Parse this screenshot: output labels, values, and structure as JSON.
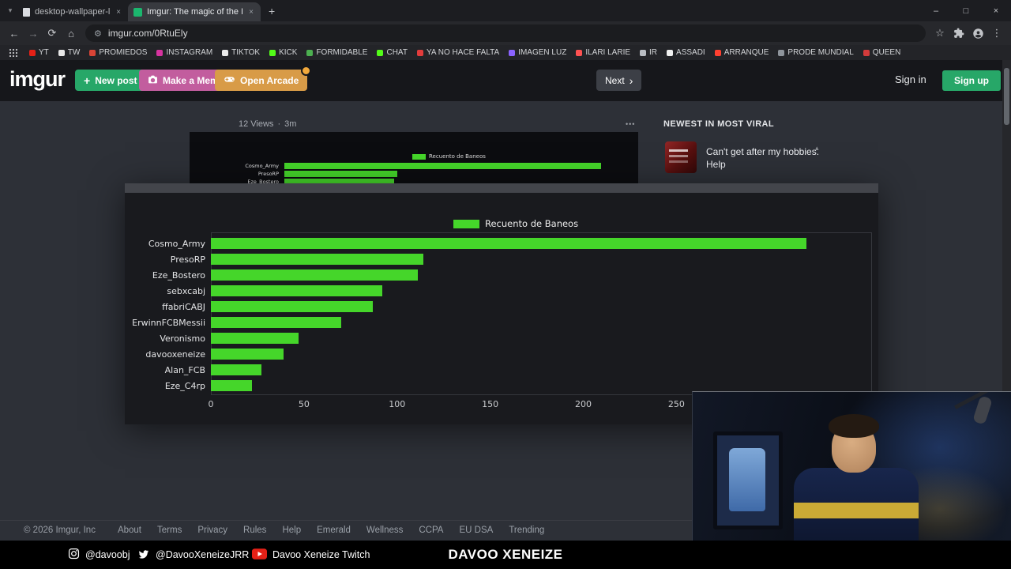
{
  "colors": {
    "imgur_green": "#27a768",
    "meme_pink": "#c25d9e",
    "arcade_orange": "#d89b47"
  },
  "icons": {
    "tab_search": "▾",
    "close": "×",
    "minimize": "–",
    "maximize": "□",
    "new_tab": "+",
    "back": "←",
    "forward": "→",
    "reload": "⟳",
    "home": "⌂",
    "tune": "⚙",
    "star": "☆",
    "menu_dots_v": "⋮",
    "post_menu": "•••",
    "caret_up": "▴",
    "chevron_right": "›",
    "plus": "+"
  },
  "browser": {
    "tabs": [
      {
        "title": "desktop-wallpaper-light-yellow...",
        "active": false
      },
      {
        "title": "Imgur: The magic of the Intern...",
        "active": true
      }
    ],
    "address": {
      "url": "imgur.com/0RtuEly"
    },
    "bookmarks": [
      {
        "label": "YT",
        "color": "#e62117"
      },
      {
        "label": "TW",
        "color": "#e8e8e8"
      },
      {
        "label": "PROMIEDOS",
        "color": "#d94436"
      },
      {
        "label": "INSTAGRAM",
        "color": "#d6339f"
      },
      {
        "label": "TIKTOK",
        "color": "#ececec"
      },
      {
        "label": "KICK",
        "color": "#53fc18"
      },
      {
        "label": "FORMIDABLE",
        "color": "#4caf50"
      },
      {
        "label": "CHAT",
        "color": "#53fc18"
      },
      {
        "label": "YA NO HACE FALTA",
        "color": "#e23c3c"
      },
      {
        "label": "IMAGEN LUZ",
        "color": "#8a63ff"
      },
      {
        "label": "ILARI LARIE",
        "color": "#ff5252"
      },
      {
        "label": "IR",
        "color": "#b8bcc2"
      },
      {
        "label": "ASSADI",
        "color": "#f0f0f0"
      },
      {
        "label": "ARRANQUE",
        "color": "#ff4030"
      },
      {
        "label": "PRODE MUNDIAL",
        "color": "#8f959c"
      },
      {
        "label": "QUEEN",
        "color": "#d23b3b"
      }
    ]
  },
  "imgur": {
    "logo": "imgur",
    "header": {
      "new_post": "New post",
      "make_meme": "Make a Meme",
      "open_arcade": "Open Arcade",
      "next": "Next",
      "sign_in": "Sign in",
      "sign_up": "Sign up"
    },
    "post": {
      "views": "12 Views",
      "separator": "·",
      "age": "3m"
    },
    "sidebar": {
      "heading": "NEWEST IN MOST VIRAL",
      "item_title": "Can't get after my hobbies. Help"
    },
    "footer": {
      "copyright": "© 2026 Imgur, Inc",
      "links": [
        "About",
        "Terms",
        "Privacy",
        "Rules",
        "Help",
        "Emerald",
        "Wellness",
        "CCPA",
        "EU DSA",
        "Trending"
      ]
    }
  },
  "chart_data": {
    "type": "bar",
    "orientation": "horizontal",
    "legend": "Recuento de Baneos",
    "legend_position": "top-center",
    "categories": [
      "Cosmo_Army",
      "PresoRP",
      "Eze_Bostero",
      "sebxcabj",
      "ffabriCABJ",
      "ErwinnFCBMessii",
      "Veronismo",
      "davooxeneize",
      "Alan_FCB",
      "Eze_C4rp"
    ],
    "values": [
      320,
      114,
      111,
      92,
      87,
      70,
      47,
      39,
      27,
      22
    ],
    "xticks": [
      0,
      50,
      100,
      150,
      200,
      250
    ],
    "xlim": [
      0,
      355
    ],
    "bar_color": "#45d62a",
    "plot_bg": "#191a1e",
    "grid": false
  },
  "stream": {
    "instagram": "@davoobj",
    "twitter": "@DavooXeneizeJRR",
    "youtube": "Davoo Xeneize Twitch",
    "watermark": "DAVOO XENEIZE"
  }
}
